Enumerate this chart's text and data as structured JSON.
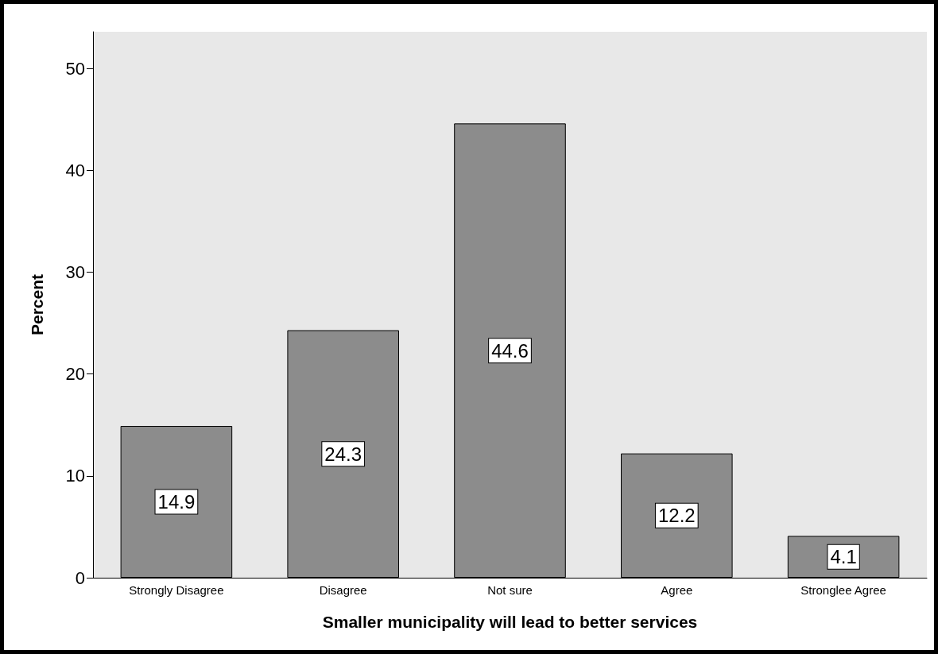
{
  "chart_data": {
    "type": "bar",
    "xlabel": "Smaller municipality will lead to better services",
    "ylabel": "Percent",
    "categories": [
      "Strongly Disagree",
      "Disagree",
      "Not sure",
      "Agree",
      "Stronglee Agree"
    ],
    "values": [
      14.9,
      24.3,
      44.6,
      12.2,
      4.1
    ],
    "color": "#8c8c8c",
    "ylim": [
      0,
      53.6
    ],
    "yticks": [
      0,
      10,
      20,
      30,
      40,
      50
    ],
    "grid": false,
    "data_labels": true
  }
}
